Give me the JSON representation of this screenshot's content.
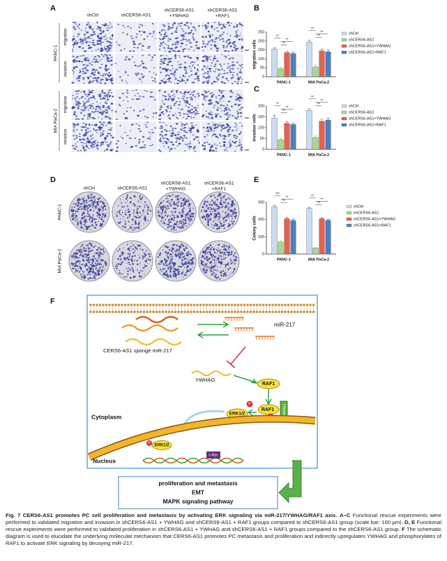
{
  "panels": {
    "a": "A",
    "b": "B",
    "c": "C",
    "d": "D",
    "e": "E",
    "f": "F"
  },
  "panel_a": {
    "columns": [
      [
        "shCtrl"
      ],
      [
        "shCERS6-AS1"
      ],
      [
        "shCERS6-AS1",
        "+YWHAG"
      ],
      [
        "shCERS6-AS1",
        "+RAF1"
      ]
    ],
    "cell_lines": [
      "PANC-1",
      "MIA PaCa-2"
    ],
    "assays": [
      "migration",
      "invasion"
    ]
  },
  "panel_d": {
    "columns": [
      [
        "shCtrl"
      ],
      [
        "shCERS6-AS1"
      ],
      [
        "shCERS6-AS1",
        "+YWHAG"
      ],
      [
        "shCERS6-AS1",
        "+RAF1"
      ]
    ],
    "cell_lines": [
      "PANC-1",
      "MIA PaCa-2"
    ]
  },
  "chart_data": [
    {
      "type": "bar",
      "ylabel": "migration cells",
      "categories": [
        "PANC-1",
        "MIA PaCa-2"
      ],
      "series": [
        {
          "name": "shCtrl",
          "color": "#c9dcf0",
          "values": [
            155,
            195
          ],
          "errors": [
            8,
            10
          ]
        },
        {
          "name": "shCERS6-AS1",
          "color": "#a8d88a",
          "values": [
            45,
            55
          ],
          "errors": [
            8,
            10
          ]
        },
        {
          "name": "shCERS6-AS1+YWHAG",
          "color": "#e8604c",
          "values": [
            135,
            145
          ],
          "errors": [
            8,
            10
          ]
        },
        {
          "name": "shCERS6-AS1+RAF1",
          "color": "#4f7fbf",
          "values": [
            130,
            140
          ],
          "errors": [
            8,
            10
          ]
        }
      ],
      "ylim": [
        0,
        250
      ],
      "yticks": [
        0,
        50,
        100,
        150,
        200,
        250
      ],
      "significance": [
        [
          "**",
          "**",
          "**"
        ],
        [
          "**",
          "**",
          "**"
        ]
      ]
    },
    {
      "type": "bar",
      "ylabel": "invasion cells",
      "categories": [
        "PANC-1",
        "MIA PaCa-2"
      ],
      "series": [
        {
          "name": "shCtrl",
          "color": "#c9dcf0",
          "values": [
            145,
            180
          ],
          "errors": [
            12,
            8
          ]
        },
        {
          "name": "shCERS6-AS1",
          "color": "#a8d88a",
          "values": [
            45,
            55
          ],
          "errors": [
            8,
            10
          ]
        },
        {
          "name": "shCERS6-AS1+YWHAG",
          "color": "#e8604c",
          "values": [
            120,
            130
          ],
          "errors": [
            8,
            10
          ]
        },
        {
          "name": "shCERS6-AS1+RAF1",
          "color": "#4f7fbf",
          "values": [
            115,
            135
          ],
          "errors": [
            6,
            8
          ]
        }
      ],
      "ylim": [
        0,
        200
      ],
      "yticks": [
        0,
        50,
        100,
        150,
        200
      ],
      "significance": [
        [
          "**",
          "**",
          "**"
        ],
        [
          "**",
          "**",
          "**"
        ]
      ]
    },
    {
      "type": "bar",
      "ylabel": "Colony cells",
      "categories": [
        "PANC-1",
        "MIA PaCa-2"
      ],
      "series": [
        {
          "name": "shCtrl",
          "color": "#c9dcf0",
          "values": [
            275,
            265
          ],
          "errors": [
            8,
            5
          ]
        },
        {
          "name": "shCERS6-AS1",
          "color": "#a8d88a",
          "values": [
            70,
            35
          ],
          "errors": [
            8,
            4
          ]
        },
        {
          "name": "shCERS6-AS1+YWHAG",
          "color": "#e8604c",
          "values": [
            205,
            205
          ],
          "errors": [
            8,
            6
          ]
        },
        {
          "name": "shCERS6-AS1+RAF1",
          "color": "#4f7fbf",
          "values": [
            195,
            195
          ],
          "errors": [
            8,
            6
          ]
        }
      ],
      "ylim": [
        0,
        300
      ],
      "yticks": [
        0,
        100,
        200,
        300
      ],
      "significance": [
        [
          "***",
          "**",
          "**"
        ],
        [
          "**",
          "**",
          "**"
        ]
      ]
    }
  ],
  "diagram": {
    "mir": "miR-217",
    "sponge": "CERS6-AS1 sponge miR-217",
    "ywhag": "YWHAG",
    "raf1_a": "RAF1",
    "raf1_b": "RAF1",
    "ywhag_box": "YWHAG",
    "erk_cyto": "ERK1/2",
    "erk_nuc": "ERK1/2",
    "p": [
      "P",
      "P",
      "P"
    ],
    "gene": "c-Myc",
    "cytoplasm": "Cytoplasm",
    "nucleus": "Nucleus",
    "outcomes": [
      "proliferation and metastasis",
      "EMT",
      "MAPK signaling pathway"
    ]
  },
  "caption": {
    "title": "Fig. 7  CERS6-AS1 promotes PC cell proliferation and metastasis by activating ERK signaling via miR-217/YWHAG/RAF1 axis.",
    "parts": [
      {
        "label": "A–C",
        "text": "Functional rescue experiments were performed to validated migration and invasion in shCERS6-AS1 + YWHAG and shCERS6-AS1 + RAF1 groups compared to shCERS6-AS1 group (scale bar: 100 μm)."
      },
      {
        "label": "D, E",
        "text": "Functional rescue experiments were performed to validated proliferation in shCERS6-AS1 + YWHAG and shCERS6-AS1 + RAF1 groups compared to the shCERS6-AS1 group."
      },
      {
        "label": "F",
        "text": "The schematic diagram is used to elucidate the underlying molecular mechanism that CERS6-AS1 promotes PC metastasis and proliferation and indirectly upregulates YWHAG and phosphorylates of RAF1 to activate ERK signaling by decoying miR-217."
      }
    ]
  }
}
